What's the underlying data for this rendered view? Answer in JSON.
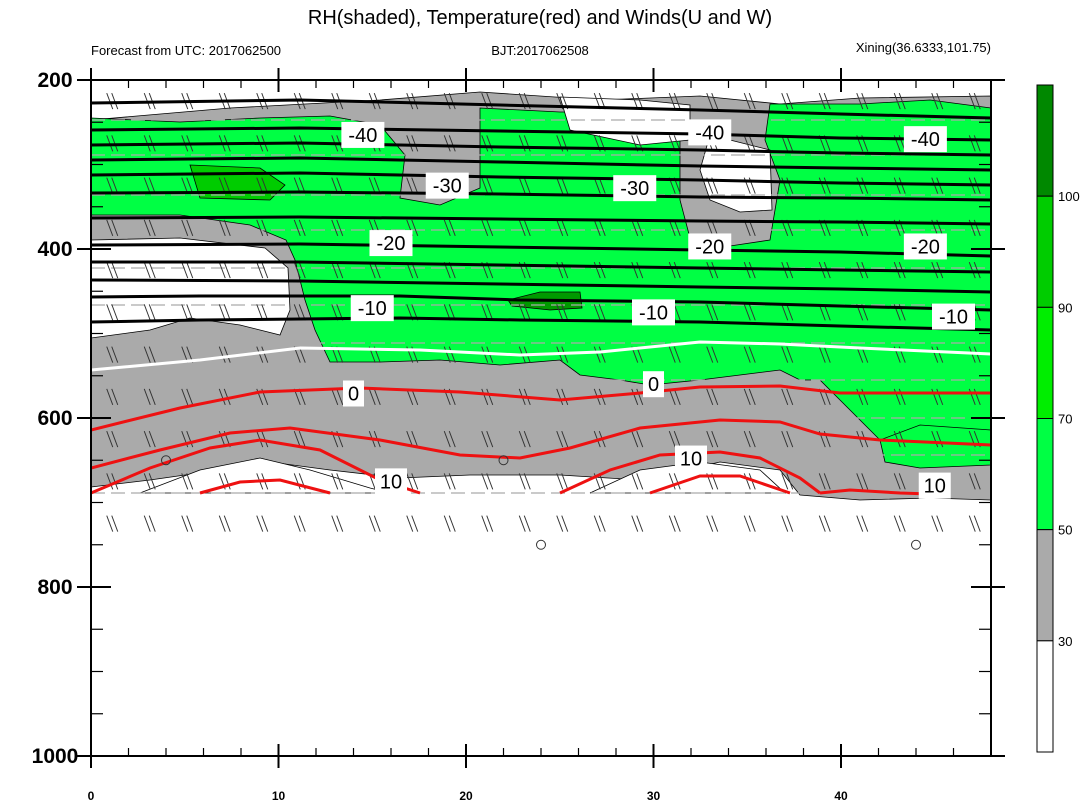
{
  "chart_data": {
    "type": "contour",
    "title": "RH(shaded), Temperature(red) and Winds(U and W)",
    "subtitle_left": "Forecast from UTC: 2017062500",
    "subtitle_center": "BJT:2017062508",
    "subtitle_right": "Xining(36.6333,101.75)",
    "x_ticks": [
      "0",
      "10",
      "20",
      "30",
      "40"
    ],
    "x_range": [
      0,
      48
    ],
    "y_ticks": [
      "200",
      "400",
      "600",
      "800",
      "1000"
    ],
    "y_range": [
      200,
      1000
    ],
    "y_inverted": true,
    "rh_colorbar": {
      "levels": [
        "30",
        "50",
        "70",
        "90",
        "100"
      ],
      "colors": [
        "#ffffff",
        "#aaaaaa",
        "#00ff44",
        "#00ee00",
        "#00cc00",
        "#008800"
      ]
    },
    "isotherm_labels": [
      {
        "text": "-40",
        "x": 14.5,
        "p": 265
      },
      {
        "text": "-40",
        "x": 33,
        "p": 262
      },
      {
        "text": "-40",
        "x": 44.5,
        "p": 270
      },
      {
        "text": "-30",
        "x": 19,
        "p": 325
      },
      {
        "text": "-30",
        "x": 29,
        "p": 328
      },
      {
        "text": "-20",
        "x": 16,
        "p": 393
      },
      {
        "text": "-20",
        "x": 33,
        "p": 397
      },
      {
        "text": "-20",
        "x": 44.5,
        "p": 397
      },
      {
        "text": "-10",
        "x": 15,
        "p": 470
      },
      {
        "text": "-10",
        "x": 30,
        "p": 475
      },
      {
        "text": "-10",
        "x": 46,
        "p": 480
      },
      {
        "text": "0",
        "x": 14,
        "p": 571
      },
      {
        "text": "0",
        "x": 30,
        "p": 560
      },
      {
        "text": "10",
        "x": 16,
        "p": 675
      },
      {
        "text": "10",
        "x": 32,
        "p": 648
      },
      {
        "text": "10",
        "x": 45,
        "p": 680
      }
    ],
    "calm_markers": [
      {
        "x": 4,
        "p": 650
      },
      {
        "x": 22,
        "p": 650
      },
      {
        "x": 24,
        "p": 750
      },
      {
        "x": 44,
        "p": 750
      }
    ]
  }
}
